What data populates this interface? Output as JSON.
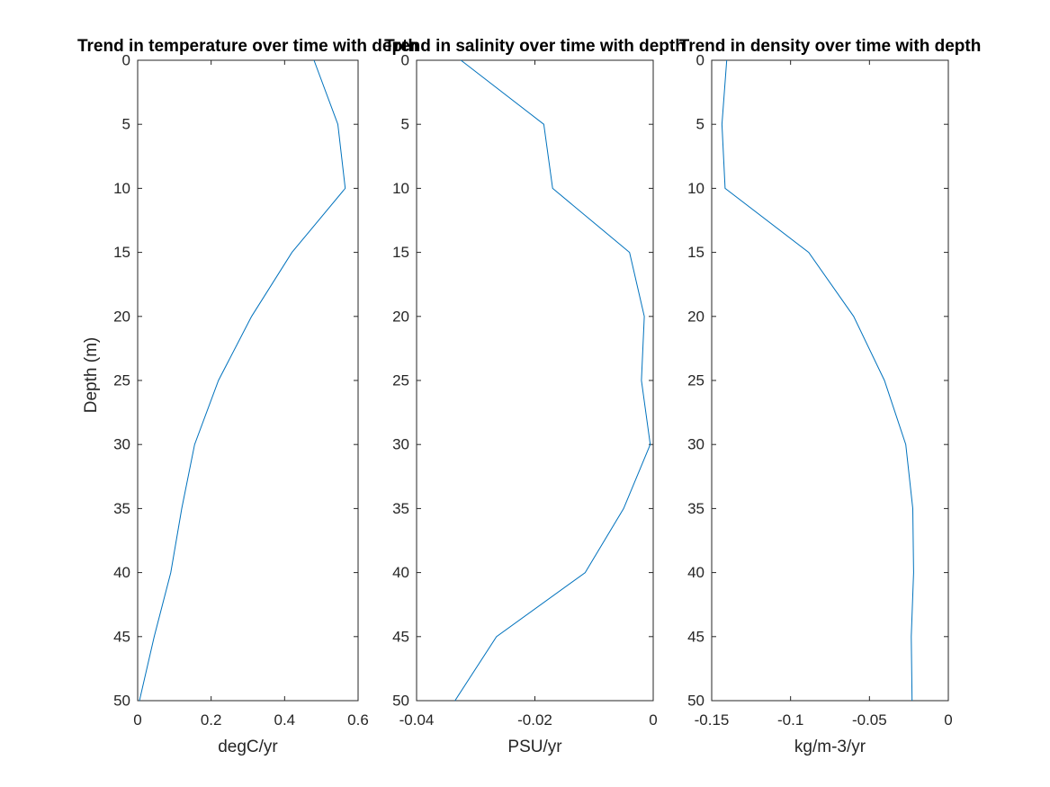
{
  "chart_data": [
    {
      "type": "line",
      "title": "Trend in temperature over time with depth",
      "xlabel": "degC/yr",
      "ylabel": "Depth (m)",
      "xlim": [
        0,
        0.6
      ],
      "ylim": [
        0,
        50
      ],
      "y_reversed": true,
      "xticks": [
        0,
        0.2,
        0.4,
        0.6
      ],
      "xtick_labels": [
        "0",
        "0.2",
        "0.4",
        "0.6"
      ],
      "yticks": [
        0,
        5,
        10,
        15,
        20,
        25,
        30,
        35,
        40,
        45,
        50
      ],
      "ytick_labels": [
        "0",
        "5",
        "10",
        "15",
        "20",
        "25",
        "30",
        "35",
        "40",
        "45",
        "50"
      ],
      "grid": false,
      "series": [
        {
          "color": "#0072bd",
          "x": [
            0.48,
            0.545,
            0.565,
            0.42,
            0.31,
            0.22,
            0.155,
            0.12,
            0.09,
            0.045,
            0.005
          ],
          "y": [
            0,
            5,
            10,
            15,
            20,
            25,
            30,
            35,
            40,
            45,
            50
          ]
        }
      ]
    },
    {
      "type": "line",
      "title": "Trend in salinity over time with depth",
      "xlabel": "PSU/yr",
      "ylabel": "",
      "xlim": [
        -0.04,
        0
      ],
      "ylim": [
        0,
        50
      ],
      "y_reversed": true,
      "xticks": [
        -0.04,
        -0.02,
        0
      ],
      "xtick_labels": [
        "-0.04",
        "-0.02",
        "0"
      ],
      "yticks": [
        0,
        5,
        10,
        15,
        20,
        25,
        30,
        35,
        40,
        45,
        50
      ],
      "ytick_labels": [
        "0",
        "5",
        "10",
        "15",
        "20",
        "25",
        "30",
        "35",
        "40",
        "45",
        "50"
      ],
      "grid": false,
      "series": [
        {
          "color": "#0072bd",
          "x": [
            -0.0325,
            -0.0185,
            -0.017,
            -0.004,
            -0.0015,
            -0.002,
            -0.0005,
            -0.005,
            -0.0115,
            -0.0265,
            -0.0335
          ],
          "y": [
            0,
            5,
            10,
            15,
            20,
            25,
            30,
            35,
            40,
            45,
            50
          ]
        }
      ]
    },
    {
      "type": "line",
      "title": "Trend in density over time with depth",
      "xlabel": "kg/m-3/yr",
      "ylabel": "",
      "xlim": [
        -0.15,
        0
      ],
      "ylim": [
        0,
        50
      ],
      "y_reversed": true,
      "xticks": [
        -0.15,
        -0.1,
        -0.05,
        0
      ],
      "xtick_labels": [
        "-0.15",
        "-0.1",
        "-0.05",
        "0"
      ],
      "yticks": [
        0,
        5,
        10,
        15,
        20,
        25,
        30,
        35,
        40,
        45,
        50
      ],
      "ytick_labels": [
        "0",
        "5",
        "10",
        "15",
        "20",
        "25",
        "30",
        "35",
        "40",
        "45",
        "50"
      ],
      "grid": false,
      "series": [
        {
          "color": "#0072bd",
          "x": [
            -0.1405,
            -0.1435,
            -0.1415,
            -0.0885,
            -0.06,
            -0.0405,
            -0.027,
            -0.0225,
            -0.022,
            -0.0235,
            -0.023
          ],
          "y": [
            0,
            5,
            10,
            15,
            20,
            25,
            30,
            35,
            40,
            45,
            50
          ]
        }
      ]
    }
  ]
}
